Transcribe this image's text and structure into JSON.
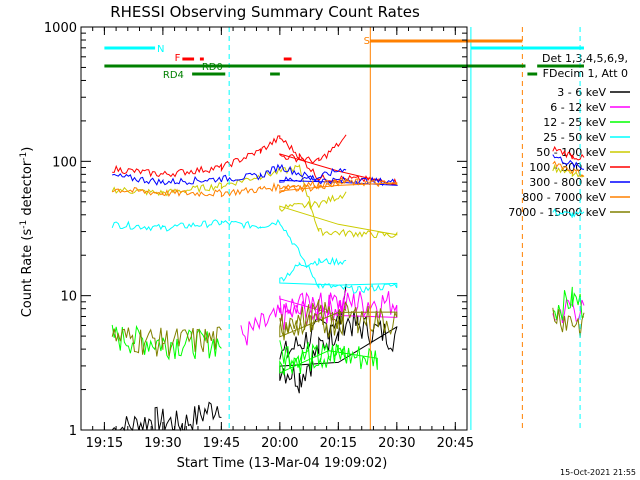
{
  "chart_data": {
    "type": "line",
    "title": "RHESSI Observing Summary Count Rates",
    "xlabel": "Start Time (13-Mar-04 19:09:02)",
    "ylabel": "Count Rate (s⁻¹ detector⁻¹)",
    "ylabel_parts": [
      "Count Rate (s",
      "-1",
      " detector",
      "-1",
      ")"
    ],
    "y_scale": "log",
    "ylim": [
      1,
      1000
    ],
    "xlim_minutes": [
      19.15,
      20.8
    ],
    "x_tick_labels": [
      "19:15",
      "19:30",
      "19:45",
      "20:00",
      "20:15",
      "20:30",
      "20:45"
    ],
    "x_tick_values": [
      "19:15",
      "19:30",
      "19:45",
      "20:00",
      "20:15",
      "20:30",
      "20:45"
    ],
    "y_tick_labels": [
      "1",
      "10",
      "100",
      "1000"
    ],
    "y_tick_values": [
      1,
      10,
      100,
      1000
    ],
    "legend_header": [
      "Det 1,3,4,5,6,9,",
      "FDecim 1, Att 0"
    ],
    "series": [
      {
        "name": "3 - 6 keV",
        "color": "#000000",
        "values": [
          [
            19.17,
            1.0
          ],
          [
            19.28,
            1.2
          ],
          [
            19.35,
            1.1
          ],
          [
            19.45,
            1.6
          ],
          [
            19.6,
            3.5
          ],
          [
            19.75,
            7
          ],
          [
            19.8,
            6
          ],
          [
            19.9,
            5
          ],
          [
            20.0,
            3
          ],
          [
            20.05,
            2.5
          ],
          [
            20.1,
            4
          ],
          [
            20.15,
            6
          ],
          [
            20.17,
            12
          ]
        ]
      },
      {
        "name": "6 - 12 keV",
        "color": "#ff00ff",
        "values": [
          [
            19.5,
            5
          ],
          [
            19.6,
            7
          ],
          [
            19.7,
            8
          ],
          [
            19.8,
            9
          ],
          [
            19.9,
            9
          ],
          [
            20.0,
            8.5
          ],
          [
            20.1,
            8.5
          ],
          [
            20.17,
            9
          ],
          [
            20.7,
            7
          ],
          [
            20.75,
            8.5
          ],
          [
            20.78,
            7.5
          ]
        ]
      },
      {
        "name": "12 - 25 keV",
        "color": "#00ff00",
        "values": [
          [
            19.17,
            5
          ],
          [
            19.3,
            4.5
          ],
          [
            19.45,
            4.5
          ],
          [
            19.6,
            3.8
          ],
          [
            19.75,
            3.6
          ],
          [
            19.85,
            3.5
          ],
          [
            20.0,
            3.4
          ],
          [
            20.1,
            3.5
          ],
          [
            20.17,
            4.0
          ],
          [
            20.7,
            8
          ],
          [
            20.75,
            9.5
          ],
          [
            20.78,
            8.5
          ]
        ]
      },
      {
        "name": "25 - 50 keV",
        "color": "#00ffff",
        "values": [
          [
            19.17,
            34
          ],
          [
            19.3,
            32
          ],
          [
            19.45,
            35
          ],
          [
            19.55,
            33
          ],
          [
            19.6,
            36
          ],
          [
            19.7,
            12
          ],
          [
            19.8,
            11
          ],
          [
            19.9,
            12
          ],
          [
            20.0,
            13
          ],
          [
            20.05,
            17
          ],
          [
            20.1,
            18
          ],
          [
            20.17,
            18
          ],
          [
            20.7,
            42
          ],
          [
            20.75,
            40
          ],
          [
            20.78,
            40
          ]
        ]
      },
      {
        "name": "50 - 100 keV",
        "color": "#cccc00",
        "values": [
          [
            19.17,
            62
          ],
          [
            19.3,
            58
          ],
          [
            19.45,
            66
          ],
          [
            19.55,
            78
          ],
          [
            19.65,
            90
          ],
          [
            19.7,
            30
          ],
          [
            19.8,
            29
          ],
          [
            19.9,
            28
          ],
          [
            20.0,
            45
          ],
          [
            20.1,
            48
          ],
          [
            20.17,
            58
          ],
          [
            20.7,
            90
          ],
          [
            20.75,
            80
          ],
          [
            20.78,
            75
          ]
        ]
      },
      {
        "name": "100 - 300 keV",
        "color": "#ff0000",
        "values": [
          [
            19.17,
            88
          ],
          [
            19.3,
            80
          ],
          [
            19.45,
            90
          ],
          [
            19.55,
            120
          ],
          [
            19.6,
            150
          ],
          [
            19.65,
            110
          ],
          [
            19.7,
            75
          ],
          [
            19.8,
            74
          ],
          [
            19.9,
            70
          ],
          [
            20.0,
            110
          ],
          [
            20.1,
            100
          ],
          [
            20.17,
            150
          ],
          [
            20.7,
            125
          ],
          [
            20.75,
            110
          ],
          [
            20.78,
            105
          ]
        ]
      },
      {
        "name": "300 - 800 keV",
        "color": "#0000ff",
        "values": [
          [
            19.17,
            78
          ],
          [
            19.3,
            70
          ],
          [
            19.45,
            74
          ],
          [
            19.55,
            78
          ],
          [
            19.6,
            92
          ],
          [
            19.7,
            72
          ],
          [
            19.8,
            72
          ],
          [
            19.9,
            70
          ],
          [
            20.0,
            72
          ],
          [
            20.1,
            76
          ],
          [
            20.17,
            90
          ],
          [
            20.7,
            110
          ],
          [
            20.75,
            95
          ],
          [
            20.78,
            88
          ]
        ]
      },
      {
        "name": "800 - 7000 keV",
        "color": "#ff8000",
        "values": [
          [
            19.17,
            62
          ],
          [
            19.3,
            58
          ],
          [
            19.45,
            58
          ],
          [
            19.55,
            62
          ],
          [
            19.6,
            65
          ],
          [
            19.7,
            68
          ],
          [
            19.8,
            70
          ],
          [
            19.9,
            67
          ],
          [
            20.0,
            62
          ],
          [
            20.1,
            64
          ],
          [
            20.17,
            72
          ],
          [
            20.7,
            100
          ],
          [
            20.75,
            85
          ],
          [
            20.78,
            80
          ]
        ]
      },
      {
        "name": "7000 - 15000 keV",
        "color": "#808000",
        "values": [
          [
            19.17,
            5
          ],
          [
            19.3,
            4.6
          ],
          [
            19.45,
            4.8
          ],
          [
            19.6,
            6
          ],
          [
            19.7,
            7.5
          ],
          [
            19.8,
            7
          ],
          [
            19.9,
            6.5
          ],
          [
            20.0,
            6
          ],
          [
            20.1,
            6
          ],
          [
            20.17,
            7
          ],
          [
            20.7,
            7.5
          ],
          [
            20.75,
            6.5
          ],
          [
            20.78,
            6
          ]
        ]
      }
    ],
    "annotations": {
      "N": {
        "label": "N",
        "color": "#00ffff"
      },
      "S": {
        "label": "S",
        "color": "#ff8000"
      },
      "F": {
        "label": "F",
        "color": "#ff0000"
      },
      "RD0": {
        "label": "RD0",
        "color": "#008000"
      },
      "RD4": {
        "label": "RD4",
        "color": "#008000"
      }
    },
    "vertical_markers": [
      {
        "x": 19.47,
        "color": "#00ffff",
        "style": "dashed"
      },
      {
        "x": 20.232,
        "color": "#ff8000",
        "style": "solid"
      },
      {
        "x": 20.49,
        "color": "#00ffff",
        "style": "solid"
      },
      {
        "x": 20.622,
        "color": "#ff8000",
        "style": "dashed"
      },
      {
        "x": 20.77,
        "color": "#00ffff",
        "style": "dashed"
      }
    ],
    "footer_date": "15-Oct-2021 21:55"
  }
}
